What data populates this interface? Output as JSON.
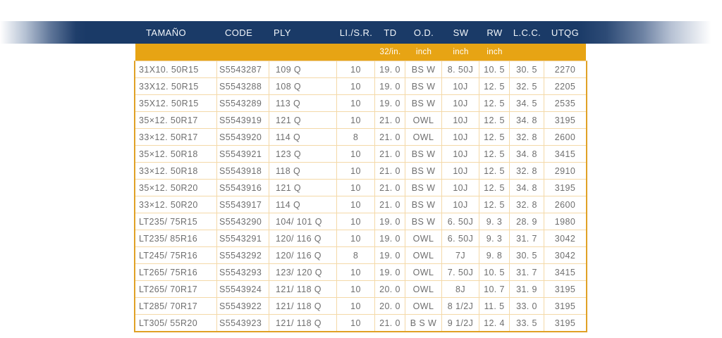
{
  "header": {
    "columns": [
      "TAMAÑO",
      "CODE",
      "PLY",
      "LI./S.R.",
      "TD",
      "O.D.",
      "SW",
      "RW",
      "L.C.C.",
      "UTQG"
    ],
    "units": [
      "",
      "",
      "",
      "",
      "32/in.",
      "inch",
      "inch",
      "inch",
      "",
      ""
    ]
  },
  "table": {
    "rows": [
      [
        "31X10. 50R15",
        "S5543287",
        "109 Q",
        "10",
        "19. 0",
        "BS W",
        "8. 50J",
        "10. 5",
        "30. 5",
        "2270"
      ],
      [
        "33X12. 50R15",
        "S5543288",
        "108 Q",
        "10",
        "19. 0",
        "BS W",
        "10J",
        "12. 5",
        "32. 5",
        "2205"
      ],
      [
        "35X12. 50R15",
        "S5543289",
        "113 Q",
        "10",
        "19. 0",
        "BS W",
        "10J",
        "12. 5",
        "34. 5",
        "2535"
      ],
      [
        "35×12. 50R17",
        "S5543919",
        "121 Q",
        "10",
        "21. 0",
        "OWL",
        "10J",
        "12. 5",
        "34. 8",
        "3195"
      ],
      [
        "33×12. 50R17",
        "S5543920",
        "114 Q",
        "8",
        "21. 0",
        "OWL",
        "10J",
        "12. 5",
        "32. 8",
        "2600"
      ],
      [
        "35×12. 50R18",
        "S5543921",
        "123 Q",
        "10",
        "21. 0",
        "BS W",
        "10J",
        "12. 5",
        "34. 8",
        "3415"
      ],
      [
        "33×12. 50R18",
        "S5543918",
        "118 Q",
        "10",
        "21. 0",
        "BS W",
        "10J",
        "12. 5",
        "32. 8",
        "2910"
      ],
      [
        "35×12. 50R20",
        "S5543916",
        "121 Q",
        "10",
        "21. 0",
        "BS W",
        "10J",
        "12. 5",
        "34. 8",
        "3195"
      ],
      [
        "33×12. 50R20",
        "S5543917",
        "114 Q",
        "10",
        "21. 0",
        "BS W",
        "10J",
        "12. 5",
        "32. 8",
        "2600"
      ],
      [
        "LT235/ 75R15",
        "S5543290",
        "104/ 101 Q",
        "10",
        "19. 0",
        "BS W",
        "6. 50J",
        "9. 3",
        "28. 9",
        "1980"
      ],
      [
        "LT235/ 85R16",
        "S5543291",
        "120/ 116 Q",
        "10",
        "19. 0",
        "OWL",
        "6. 50J",
        "9. 3",
        "31. 7",
        "3042"
      ],
      [
        "LT245/ 75R16",
        "S5543292",
        "120/ 116 Q",
        "8",
        "19. 0",
        "OWL",
        "7J",
        "9. 8",
        "30. 5",
        "3042"
      ],
      [
        "LT265/ 75R16",
        "S5543293",
        "123/ 120 Q",
        "10",
        "19. 0",
        "OWL",
        "7. 50J",
        "10. 5",
        "31. 7",
        "3415"
      ],
      [
        "LT265/ 70R17",
        "S5543924",
        "121/ 118 Q",
        "10",
        "20. 0",
        "OWL",
        "8J",
        "10. 7",
        "31. 9",
        "3195"
      ],
      [
        "LT285/ 70R17",
        "S5543922",
        "121/ 118 Q",
        "10",
        "20. 0",
        "OWL",
        "8 1/2J",
        "11. 5",
        "33. 0",
        "3195"
      ],
      [
        "LT305/ 55R20",
        "S5543923",
        "121/ 118 Q",
        "10",
        "21. 0",
        "B S W",
        "9 1/2J",
        "12. 4",
        "33. 5",
        "3195"
      ]
    ]
  },
  "colors": {
    "band_navy": "#1a3a67",
    "accent_orange": "#e7a414",
    "outer_border": "#e0a125",
    "grid_line": "#f4d9a8",
    "body_text": "#6f6f6f",
    "header_text": "#ffffff"
  }
}
